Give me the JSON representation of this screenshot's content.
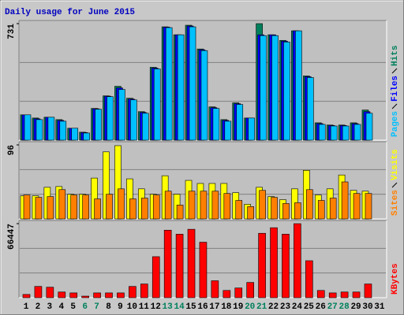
{
  "chart_data": [
    {
      "type": "bar",
      "title": "Daily usage for June 2015",
      "title_color": "#0000c0",
      "series": [
        {
          "name": "Hits",
          "color": "#00805c",
          "values": [
            159,
            139,
            144,
            129,
            75,
            50,
            199,
            278,
            338,
            263,
            179,
            457,
            711,
            661,
            721,
            572,
            209,
            129,
            234,
            139,
            731,
            661,
            626,
            686,
            403,
            109,
            95,
            95,
            109,
            189,
            null
          ]
        },
        {
          "name": "Files",
          "color": "#0000ff",
          "values": [
            159,
            134,
            144,
            124,
            75,
            48,
            197,
            276,
            328,
            258,
            174,
            452,
            709,
            661,
            716,
            567,
            204,
            124,
            229,
            139,
            661,
            661,
            621,
            686,
            398,
            104,
            92,
            92,
            104,
            179,
            null
          ]
        },
        {
          "name": "Pages",
          "color": "#00c0ff",
          "values": [
            159,
            129,
            144,
            119,
            75,
            45,
            194,
            273,
            318,
            253,
            169,
            447,
            706,
            661,
            711,
            562,
            199,
            119,
            224,
            139,
            656,
            656,
            616,
            686,
            393,
            99,
            89,
            89,
            99,
            169,
            null
          ]
        }
      ],
      "ylim": [
        0,
        731
      ],
      "yticks": [
        731
      ],
      "grid": true
    },
    {
      "type": "bar",
      "series": [
        {
          "name": "Visits",
          "color": "#ffff00",
          "values": [
            30,
            30,
            41,
            42,
            32,
            32,
            53,
            87,
            95,
            52,
            39,
            32,
            56,
            32,
            50,
            46,
            46,
            46,
            34,
            19,
            41,
            29,
            25,
            39,
            63,
            31,
            39,
            57,
            37,
            36,
            null
          ]
        },
        {
          "name": "Sites",
          "color": "#ff8000",
          "values": [
            31,
            28,
            29,
            38,
            31,
            31,
            26,
            32,
            39,
            26,
            27,
            31,
            36,
            18,
            36,
            36,
            36,
            33,
            24,
            16,
            37,
            28,
            20,
            21,
            38,
            24,
            27,
            48,
            33,
            33,
            null
          ]
        }
      ],
      "ylim": [
        0,
        96
      ],
      "yticks": [
        96
      ],
      "grid": true
    },
    {
      "type": "bar",
      "categories": [
        "1",
        "2",
        "3",
        "4",
        "5",
        "6",
        "7",
        "8",
        "9",
        "10",
        "11",
        "12",
        "13",
        "14",
        "15",
        "16",
        "17",
        "18",
        "19",
        "20",
        "21",
        "22",
        "23",
        "24",
        "25",
        "26",
        "27",
        "28",
        "29",
        "30",
        "31"
      ],
      "label_colors": [
        "#000000",
        "#000000",
        "#000000",
        "#000000",
        "#000000",
        "#00805c",
        "#00805c",
        "#000000",
        "#000000",
        "#000000",
        "#000000",
        "#000000",
        "#00805c",
        "#00805c",
        "#000000",
        "#000000",
        "#000000",
        "#000000",
        "#000000",
        "#00805c",
        "#00805c",
        "#000000",
        "#000000",
        "#000000",
        "#000000",
        "#000000",
        "#00805c",
        "#00805c",
        "#000000",
        "#000000",
        "#000000"
      ],
      "series": [
        {
          "name": "KBytes",
          "color": "#ff0000",
          "values": [
            2900,
            10100,
            9400,
            5100,
            4300,
            1400,
            4300,
            4300,
            4300,
            10100,
            12300,
            36800,
            60600,
            57000,
            61400,
            49800,
            15200,
            6500,
            8700,
            13700,
            57800,
            62800,
            57000,
            66447,
            33200,
            6500,
            4300,
            5100,
            5100,
            12300,
            null
          ]
        }
      ],
      "ylim": [
        0,
        66447
      ],
      "yticks": [
        66447
      ],
      "grid": true
    }
  ]
}
